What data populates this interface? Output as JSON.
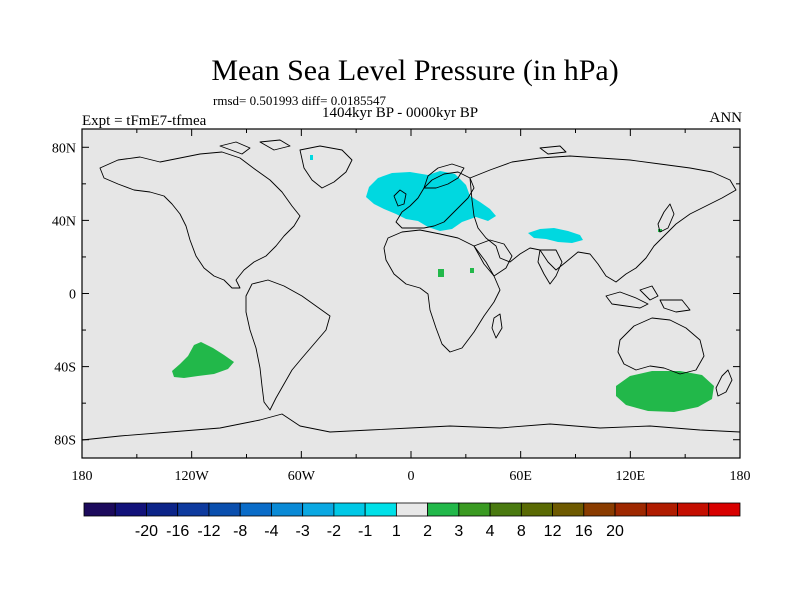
{
  "title": "Mean Sea Level Pressure (in hPa)",
  "stats": "rmsd= 0.501993 diff= 0.0185547",
  "period": "1404kyr BP - 0000kyr BP",
  "experiment": "Expt = tFmE7-tfmea",
  "season": "ANN",
  "map_data": {
    "projection": "cylindrical-equidistant",
    "lon_range": [
      -180,
      180
    ],
    "lat_range": [
      -90,
      90
    ],
    "lat_ticks": [
      {
        "value": 80,
        "label": "80N"
      },
      {
        "value": 40,
        "label": "40N"
      },
      {
        "value": 0,
        "label": "0"
      },
      {
        "value": -40,
        "label": "40S"
      },
      {
        "value": -80,
        "label": "80S"
      }
    ],
    "lon_ticks": [
      {
        "value": -180,
        "label": "180"
      },
      {
        "value": -120,
        "label": "120W"
      },
      {
        "value": -60,
        "label": "60W"
      },
      {
        "value": 0,
        "label": "0"
      },
      {
        "value": 60,
        "label": "60E"
      },
      {
        "value": 120,
        "label": "120E"
      },
      {
        "value": 180,
        "label": "180"
      }
    ],
    "anomaly_regions": [
      {
        "name": "europe-negative",
        "bin": "-2 to -1",
        "color": "#00d8e0",
        "lon_range": [
          -20,
          50
        ],
        "lat_range": [
          37,
          70
        ]
      },
      {
        "name": "central-asia-negative",
        "bin": "-2 to -1",
        "color": "#00d8e0",
        "lon_range": [
          64,
          95
        ],
        "lat_range": [
          30,
          37
        ]
      },
      {
        "name": "south-pacific-positive",
        "bin": "1 to 2",
        "color": "#22b84a",
        "lon_range": [
          -128,
          -95
        ],
        "lat_range": [
          -46,
          -26
        ]
      },
      {
        "name": "southern-ocean-positive",
        "bin": "1 to 2",
        "color": "#22b84a",
        "lon_range": [
          108,
          165
        ],
        "lat_range": [
          -65,
          -42
        ]
      }
    ]
  },
  "colorbar": {
    "colors": [
      "#1c0a5c",
      "#12127a",
      "#0c2488",
      "#0e3a9e",
      "#0a4fae",
      "#0a6cc8",
      "#0a8ad6",
      "#0aa8e2",
      "#00c8e6",
      "#00e0e8",
      "#e8e8e8",
      "#22b84a",
      "#3a9a22",
      "#4a7a10",
      "#5a6a04",
      "#6e5a00",
      "#8a3c00",
      "#9e2800",
      "#b01c00",
      "#c40e00",
      "#d80000"
    ],
    "labels": [
      "-20",
      "-16",
      "-12",
      "-8",
      "-4",
      "-3",
      "-2",
      "-1",
      "1",
      "2",
      "3",
      "4",
      "8",
      "12",
      "16",
      "20"
    ]
  }
}
